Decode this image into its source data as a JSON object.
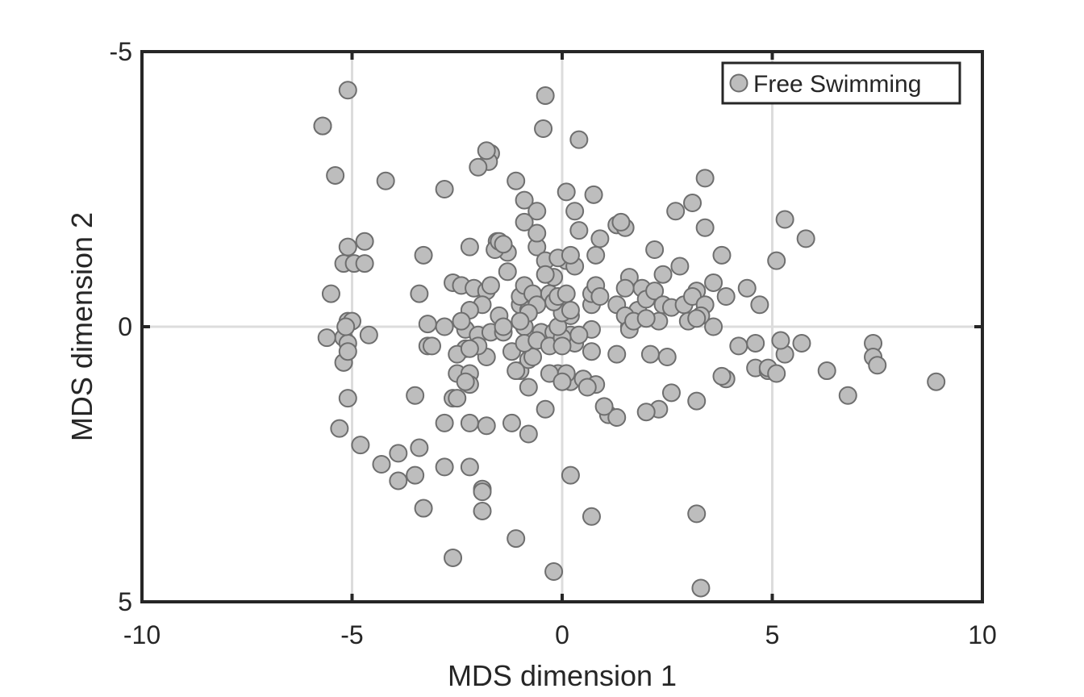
{
  "chart_data": {
    "type": "scatter",
    "xlabel": "MDS dimension 1",
    "ylabel": "MDS dimension 2",
    "xlim": [
      -10,
      10
    ],
    "ylim": [
      -5,
      5
    ],
    "y_axis_reversed": true,
    "grid": true,
    "xticks": [
      -10,
      -5,
      0,
      5,
      10
    ],
    "yticks": [
      -5,
      0,
      5
    ],
    "xtick_labels": [
      "-10",
      "-5",
      "0",
      "5",
      "10"
    ],
    "ytick_labels": [
      "-5",
      "0",
      "5"
    ],
    "legend_position": "top-right",
    "colors": {
      "marker_fill": "#bdbdbd",
      "marker_edge": "#6e6e6e",
      "axes": "#262626",
      "grid": "#dcdcdc"
    },
    "series": [
      {
        "name": "Free Swimming",
        "points": [
          [
            -5.1,
            -4.3
          ],
          [
            -5.7,
            -3.65
          ],
          [
            -5.4,
            -2.75
          ],
          [
            -4.2,
            -2.65
          ],
          [
            -0.4,
            -4.2
          ],
          [
            -0.45,
            -3.6
          ],
          [
            0.4,
            -3.4
          ],
          [
            -1.7,
            -3.15
          ],
          [
            -1.75,
            -3.0
          ],
          [
            -2.0,
            -2.9
          ],
          [
            -2.8,
            -2.5
          ],
          [
            -1.1,
            -2.65
          ],
          [
            0.1,
            -2.45
          ],
          [
            0.75,
            -2.4
          ],
          [
            -0.9,
            -2.3
          ],
          [
            -0.6,
            -2.1
          ],
          [
            0.3,
            -2.1
          ],
          [
            -0.9,
            -1.9
          ],
          [
            -5.1,
            -1.45
          ],
          [
            -4.7,
            -1.55
          ],
          [
            -5.2,
            -1.15
          ],
          [
            -4.95,
            -1.15
          ],
          [
            -4.7,
            -1.15
          ],
          [
            -3.3,
            -1.3
          ],
          [
            -2.2,
            -1.45
          ],
          [
            -1.55,
            -1.55
          ],
          [
            -1.3,
            -1.35
          ],
          [
            -1.6,
            -1.4
          ],
          [
            -0.6,
            -1.45
          ],
          [
            -0.4,
            -1.2
          ],
          [
            0.1,
            -1.2
          ],
          [
            0.3,
            -1.1
          ],
          [
            0.4,
            -1.75
          ],
          [
            0.9,
            -1.6
          ],
          [
            0.8,
            -1.3
          ],
          [
            1.3,
            -1.85
          ],
          [
            1.5,
            -1.8
          ],
          [
            1.4,
            -1.9
          ],
          [
            2.7,
            -2.1
          ],
          [
            3.1,
            -2.25
          ],
          [
            3.4,
            -2.7
          ],
          [
            3.4,
            -1.8
          ],
          [
            3.8,
            -1.3
          ],
          [
            5.3,
            -1.95
          ],
          [
            5.8,
            -1.6
          ],
          [
            5.1,
            -1.2
          ],
          [
            2.2,
            -1.4
          ],
          [
            2.8,
            -1.1
          ],
          [
            2.4,
            -0.95
          ],
          [
            1.6,
            -0.9
          ],
          [
            1.9,
            -0.7
          ],
          [
            3.6,
            -0.8
          ],
          [
            3.2,
            -0.65
          ],
          [
            3.9,
            -0.55
          ],
          [
            4.4,
            -0.7
          ],
          [
            4.7,
            -0.4
          ],
          [
            -5.5,
            -0.6
          ],
          [
            -3.4,
            -0.6
          ],
          [
            -2.6,
            -0.8
          ],
          [
            -2.4,
            -0.75
          ],
          [
            -2.1,
            -0.7
          ],
          [
            -1.8,
            -0.65
          ],
          [
            -1.5,
            -0.2
          ],
          [
            -1.9,
            -0.4
          ],
          [
            -2.2,
            -0.3
          ],
          [
            -1.0,
            -0.4
          ],
          [
            -0.8,
            -0.3
          ],
          [
            -0.5,
            -0.5
          ],
          [
            0.2,
            -0.2
          ],
          [
            0.7,
            -0.4
          ],
          [
            1.8,
            -0.25
          ],
          [
            2.3,
            -0.1
          ],
          [
            -5.1,
            -0.1
          ],
          [
            -5.2,
            0.2
          ],
          [
            -5.1,
            0.3
          ],
          [
            -5.6,
            0.2
          ],
          [
            -4.6,
            0.15
          ],
          [
            -2.8,
            0.0
          ],
          [
            -2.3,
            0.05
          ],
          [
            -2.0,
            0.15
          ],
          [
            -1.7,
            0.1
          ],
          [
            -1.4,
            0.1
          ],
          [
            -0.9,
            0.0
          ],
          [
            -0.5,
            0.1
          ],
          [
            -0.2,
            0.1
          ],
          [
            0.2,
            0.15
          ],
          [
            0.7,
            0.05
          ],
          [
            1.6,
            0.0
          ],
          [
            3.6,
            0.0
          ],
          [
            4.2,
            0.35
          ],
          [
            5.3,
            0.5
          ],
          [
            5.7,
            0.3
          ],
          [
            7.4,
            0.3
          ],
          [
            7.4,
            0.55
          ],
          [
            8.9,
            1.0
          ],
          [
            6.3,
            0.8
          ],
          [
            4.6,
            0.75
          ],
          [
            3.9,
            0.95
          ],
          [
            2.3,
            1.5
          ],
          [
            -5.2,
            0.65
          ],
          [
            -5.1,
            0.45
          ],
          [
            -3.2,
            0.35
          ],
          [
            -2.3,
            0.4
          ],
          [
            -2.5,
            0.85
          ],
          [
            -2.2,
            0.85
          ],
          [
            -2.2,
            1.05
          ],
          [
            -5.1,
            1.3
          ],
          [
            -4.8,
            2.15
          ],
          [
            -5.3,
            1.85
          ],
          [
            -4.3,
            2.5
          ],
          [
            -3.9,
            2.3
          ],
          [
            -3.5,
            1.25
          ],
          [
            -3.4,
            2.2
          ],
          [
            -2.8,
            1.75
          ],
          [
            -2.6,
            1.3
          ],
          [
            -2.2,
            1.75
          ],
          [
            -1.8,
            1.8
          ],
          [
            -1.2,
            1.75
          ],
          [
            -0.8,
            1.95
          ],
          [
            -0.4,
            1.5
          ],
          [
            -0.1,
            0.85
          ],
          [
            0.2,
            1.0
          ],
          [
            0.5,
            0.95
          ],
          [
            0.8,
            1.05
          ],
          [
            1.1,
            1.6
          ],
          [
            1.3,
            1.65
          ],
          [
            2.0,
            1.55
          ],
          [
            3.2,
            1.35
          ],
          [
            3.8,
            0.9
          ],
          [
            4.6,
            0.3
          ],
          [
            4.9,
            0.8
          ],
          [
            5.2,
            0.25
          ],
          [
            6.8,
            1.25
          ],
          [
            7.5,
            0.7
          ],
          [
            -3.5,
            2.7
          ],
          [
            -3.9,
            2.8
          ],
          [
            -1.9,
            2.95
          ],
          [
            -1.9,
            3.35
          ],
          [
            -2.2,
            2.55
          ],
          [
            -2.8,
            2.55
          ],
          [
            -3.3,
            3.3
          ],
          [
            -1.1,
            3.85
          ],
          [
            -2.6,
            4.2
          ],
          [
            -1.9,
            3.0
          ],
          [
            0.2,
            2.7
          ],
          [
            0.7,
            3.45
          ],
          [
            3.2,
            3.4
          ],
          [
            3.3,
            4.75
          ],
          [
            -0.2,
            4.45
          ],
          [
            -1.0,
            0.8
          ],
          [
            -0.8,
            0.6
          ],
          [
            -0.3,
            0.85
          ],
          [
            0.1,
            0.85
          ],
          [
            0.6,
            1.1
          ],
          [
            -0.7,
            0.55
          ],
          [
            -1.8,
            0.55
          ],
          [
            -2.0,
            0.35
          ],
          [
            -2.5,
            0.5
          ],
          [
            -1.2,
            0.45
          ],
          [
            -0.9,
            0.3
          ],
          [
            -0.6,
            0.25
          ],
          [
            -0.3,
            0.35
          ],
          [
            0.3,
            0.3
          ],
          [
            1.3,
            0.5
          ],
          [
            2.1,
            0.5
          ],
          [
            2.5,
            0.55
          ],
          [
            0.0,
            0.2
          ],
          [
            -0.1,
            0.0
          ],
          [
            0.0,
            -0.25
          ],
          [
            0.2,
            -0.3
          ],
          [
            -5.7,
            -3.65
          ],
          [
            -1.8,
            -3.2
          ],
          [
            -1.7,
            -0.75
          ],
          [
            -1.5,
            -1.55
          ],
          [
            -1.4,
            -1.5
          ],
          [
            -1.3,
            -1.0
          ],
          [
            -1.0,
            -0.55
          ],
          [
            -0.9,
            -0.75
          ],
          [
            -0.7,
            -0.6
          ],
          [
            -0.6,
            -0.4
          ],
          [
            -0.3,
            -0.6
          ],
          [
            -0.2,
            -0.45
          ],
          [
            -0.1,
            -0.55
          ],
          [
            0.1,
            -0.6
          ],
          [
            -0.2,
            -0.9
          ],
          [
            -0.4,
            -0.95
          ],
          [
            -0.1,
            -1.25
          ],
          [
            0.2,
            -1.3
          ],
          [
            0.7,
            -0.6
          ],
          [
            0.8,
            -0.75
          ],
          [
            0.9,
            -0.55
          ],
          [
            1.3,
            -0.4
          ],
          [
            1.5,
            -0.7
          ],
          [
            1.8,
            -0.3
          ],
          [
            2.0,
            -0.5
          ],
          [
            2.2,
            -0.65
          ],
          [
            2.4,
            -0.4
          ],
          [
            2.6,
            -0.35
          ],
          [
            2.9,
            -0.4
          ],
          [
            3.1,
            -0.55
          ],
          [
            3.4,
            -0.4
          ],
          [
            3.3,
            -0.2
          ],
          [
            1.5,
            -0.2
          ],
          [
            1.6,
            0.05
          ],
          [
            1.7,
            -0.1
          ],
          [
            2.0,
            -0.15
          ],
          [
            3.0,
            -0.1
          ],
          [
            3.2,
            -0.15
          ],
          [
            -0.6,
            -1.7
          ],
          [
            -0.8,
            -0.25
          ],
          [
            -1.0,
            -0.1
          ],
          [
            -1.4,
            0.0
          ],
          [
            -2.4,
            -0.1
          ],
          [
            -2.2,
            0.4
          ],
          [
            -1.1,
            0.8
          ],
          [
            0.0,
            0.35
          ],
          [
            0.4,
            0.15
          ],
          [
            0.7,
            0.45
          ],
          [
            -5.0,
            -0.1
          ],
          [
            -5.15,
            0.0
          ],
          [
            -3.2,
            -0.05
          ],
          [
            -3.1,
            0.35
          ],
          [
            -2.5,
            1.3
          ],
          [
            -2.3,
            1.0
          ],
          [
            -0.8,
            1.1
          ],
          [
            0.0,
            1.0
          ],
          [
            1.0,
            1.45
          ],
          [
            2.6,
            1.2
          ],
          [
            4.9,
            0.75
          ],
          [
            5.1,
            0.85
          ]
        ]
      }
    ]
  }
}
